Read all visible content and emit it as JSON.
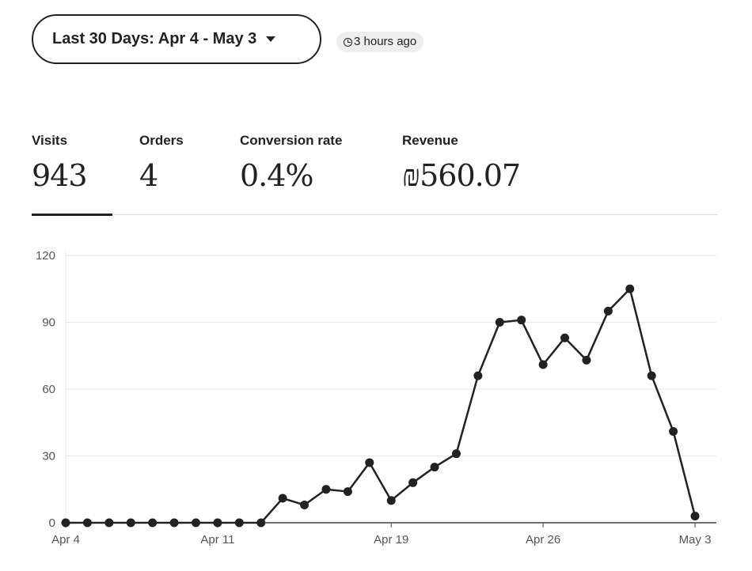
{
  "header": {
    "date_range": "Last 30 Days: Apr 4 - May 3",
    "updated": "3 hours ago"
  },
  "metrics": [
    {
      "label": "Visits",
      "value": "943"
    },
    {
      "label": "Orders",
      "value": "4"
    },
    {
      "label": "Conversion rate",
      "value": "0.4%"
    },
    {
      "label": "Revenue",
      "value": "₪560.07"
    }
  ],
  "chart_data": {
    "type": "line",
    "title": "Visits",
    "x": [
      "Apr 4",
      "Apr 5",
      "Apr 6",
      "Apr 7",
      "Apr 8",
      "Apr 9",
      "Apr 10",
      "Apr 11",
      "Apr 12",
      "Apr 13",
      "Apr 14",
      "Apr 15",
      "Apr 16",
      "Apr 17",
      "Apr 18",
      "Apr 19",
      "Apr 20",
      "Apr 21",
      "Apr 22",
      "Apr 23",
      "Apr 24",
      "Apr 25",
      "Apr 26",
      "Apr 27",
      "Apr 28",
      "Apr 29",
      "Apr 30",
      "May 1",
      "May 2",
      "May 3"
    ],
    "values": [
      0,
      0,
      0,
      0,
      0,
      0,
      0,
      0,
      0,
      0,
      11,
      8,
      15,
      14,
      27,
      10,
      18,
      25,
      31,
      66,
      90,
      91,
      71,
      83,
      73,
      95,
      105,
      66,
      41,
      3
    ],
    "xticks": [
      {
        "label": "Apr 4",
        "index": 0
      },
      {
        "label": "Apr 11",
        "index": 7
      },
      {
        "label": "Apr 19",
        "index": 15
      },
      {
        "label": "Apr 26",
        "index": 22
      },
      {
        "label": "May 3",
        "index": 29
      }
    ],
    "yticks": [
      0,
      30,
      60,
      90,
      120
    ],
    "ylim": [
      0,
      120
    ],
    "grid": true,
    "line_color": "#222222"
  }
}
